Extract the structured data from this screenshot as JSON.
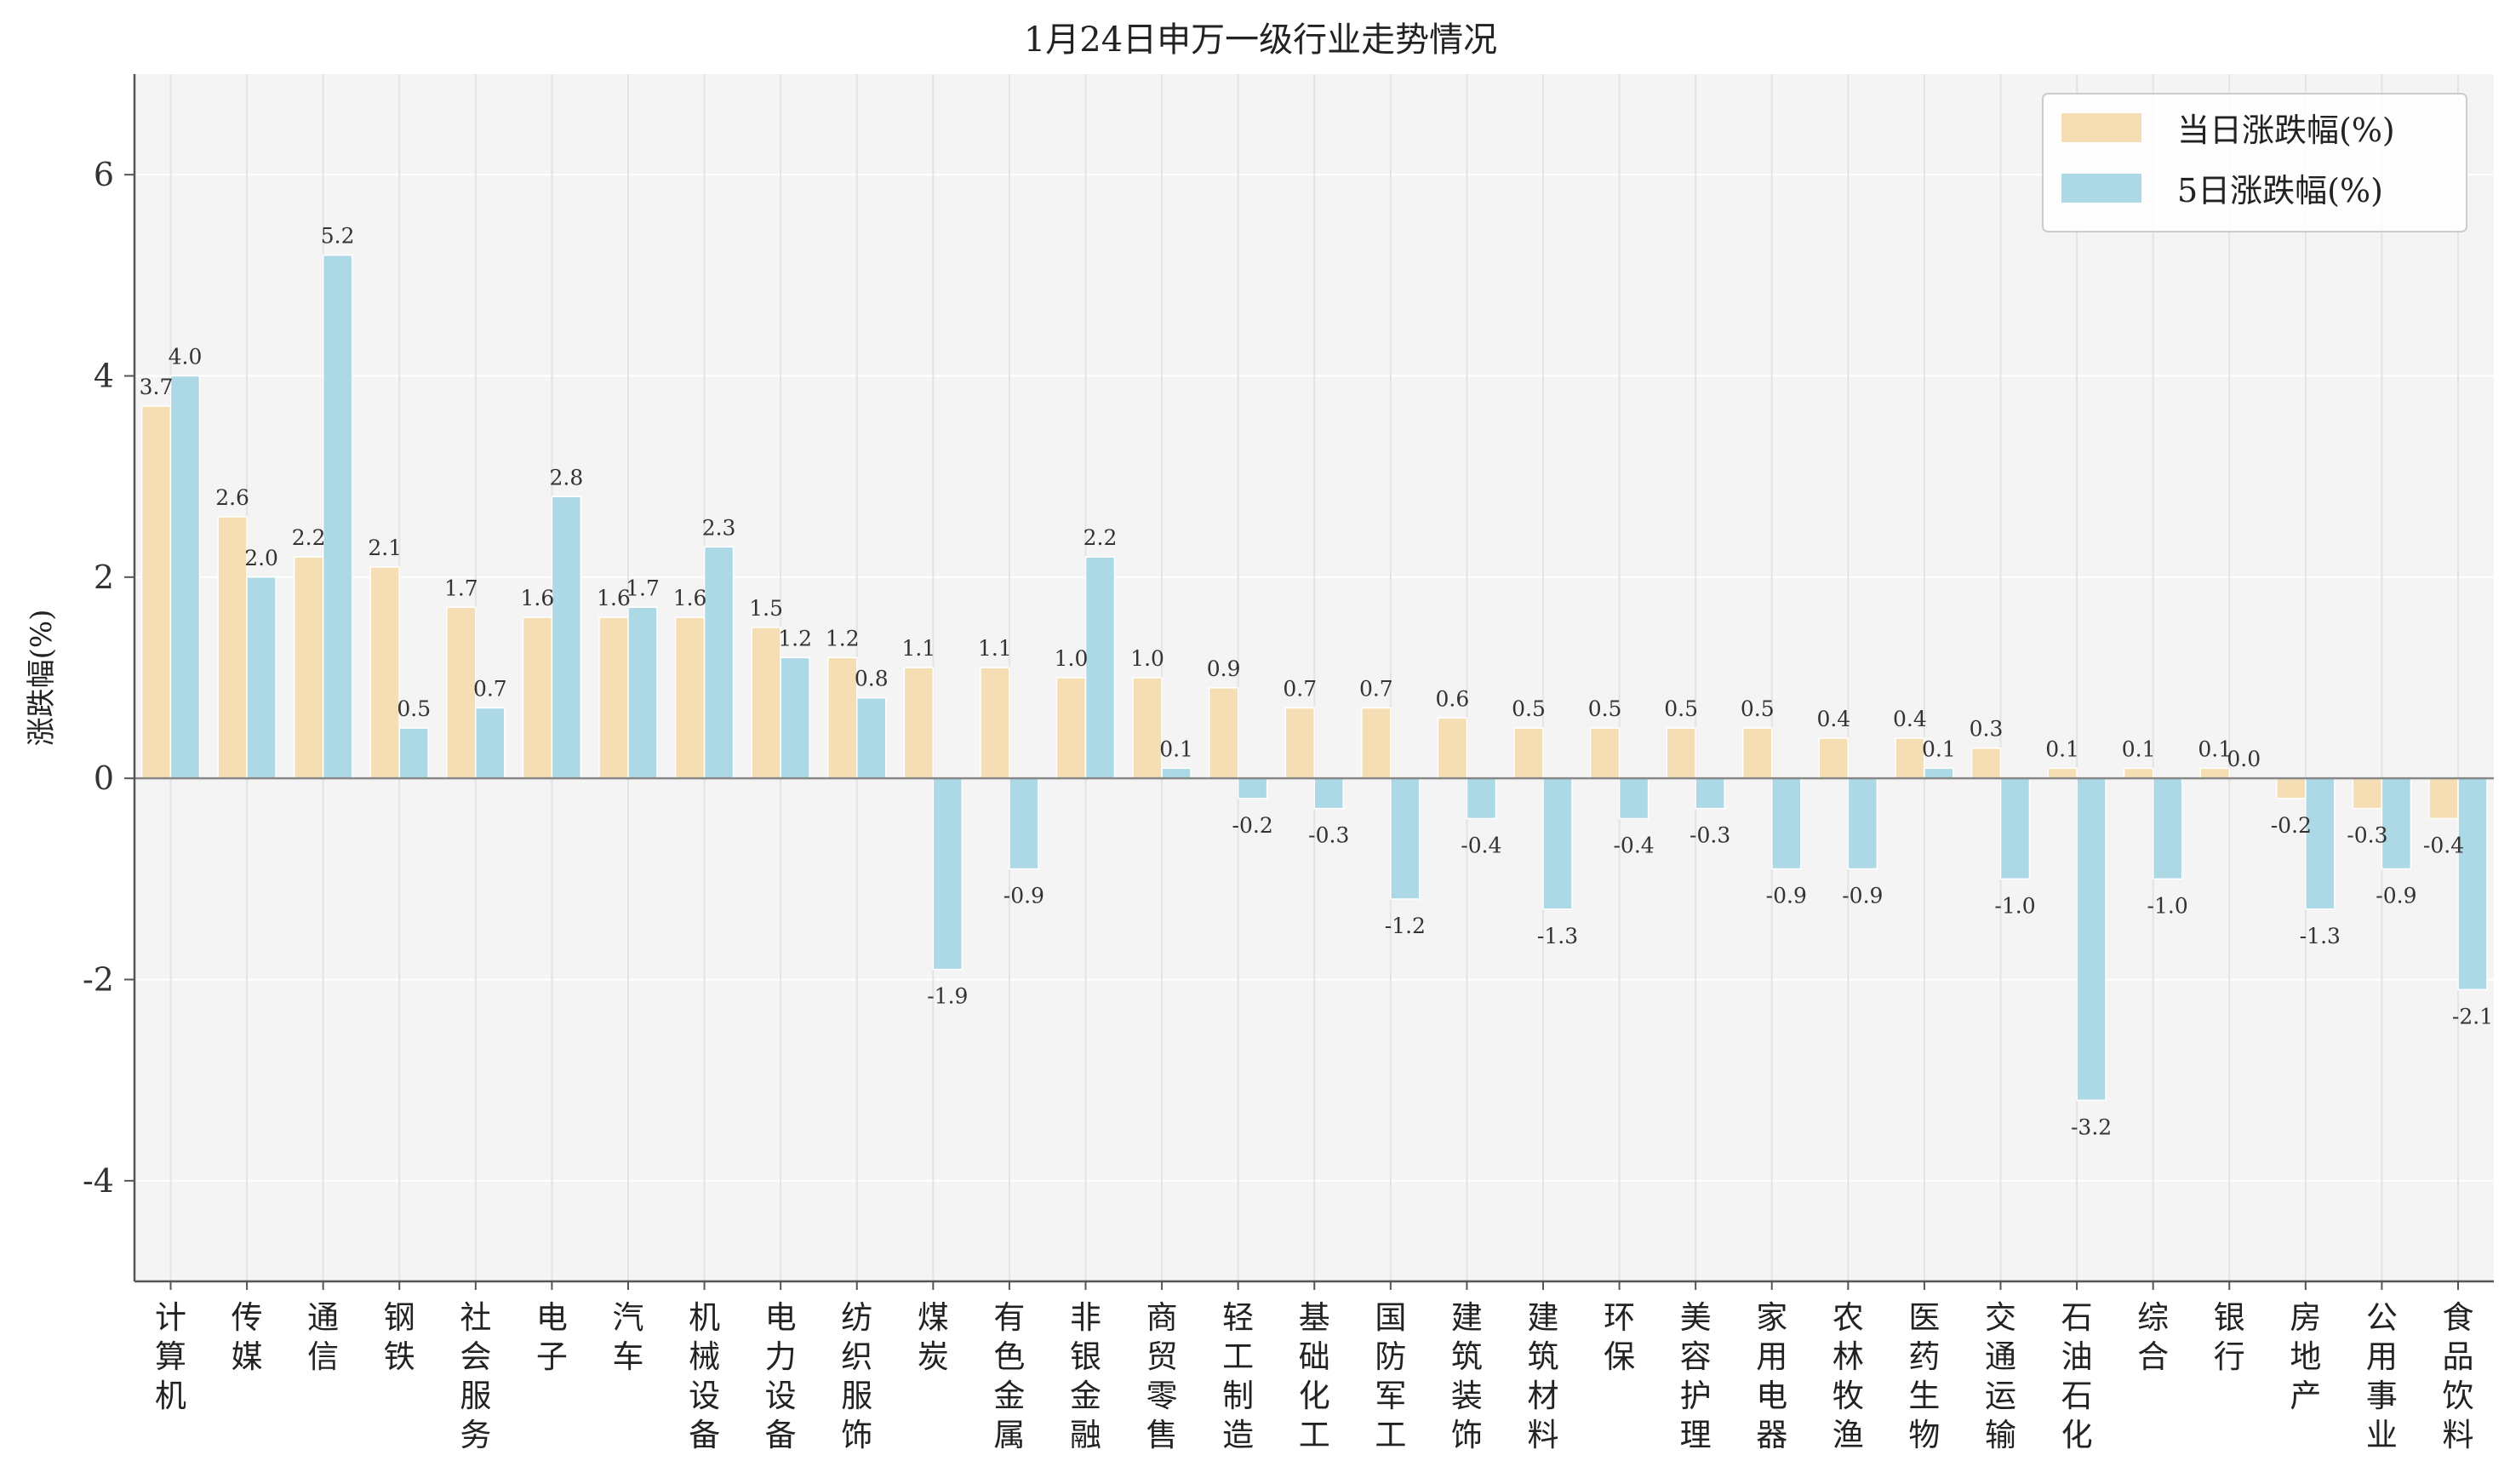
{
  "chart_data": {
    "type": "bar",
    "title": "1月24日申万一级行业走势情况",
    "ylabel": "涨跌幅(%)",
    "xlabel": "",
    "ylim": [
      -5,
      7
    ],
    "yticks": [
      -4,
      -2,
      0,
      2,
      4,
      6
    ],
    "legend_position": "top-right",
    "grid": true,
    "categories": [
      "计算机",
      "传媒",
      "通信",
      "钢铁",
      "社会服务",
      "电子",
      "汽车",
      "机械设备",
      "电力设备",
      "纺织服饰",
      "煤炭",
      "有色金属",
      "非银金融",
      "商贸零售",
      "轻工制造",
      "基础化工",
      "国防军工",
      "建筑装饰",
      "建筑材料",
      "环保",
      "美容护理",
      "家用电器",
      "农林牧渔",
      "医药生物",
      "交通运输",
      "石油石化",
      "综合",
      "银行",
      "房地产",
      "公用事业",
      "食品饮料"
    ],
    "series": [
      {
        "name": "当日涨跌幅(%)",
        "color": "#f5deb3",
        "values": [
          3.7,
          2.6,
          2.2,
          2.1,
          1.7,
          1.6,
          1.6,
          1.6,
          1.5,
          1.2,
          1.1,
          1.1,
          1.0,
          1.0,
          0.9,
          0.7,
          0.7,
          0.6,
          0.5,
          0.5,
          0.5,
          0.5,
          0.4,
          0.4,
          0.3,
          0.1,
          0.1,
          0.1,
          -0.2,
          -0.3,
          -0.4
        ]
      },
      {
        "name": "5日涨跌幅(%)",
        "color": "#add8e6",
        "values": [
          4.0,
          2.0,
          5.2,
          0.5,
          0.7,
          2.8,
          1.7,
          2.3,
          1.2,
          0.8,
          -1.9,
          -0.9,
          2.2,
          0.1,
          -0.2,
          -0.3,
          -1.2,
          -0.4,
          -1.3,
          -0.4,
          -0.3,
          -0.9,
          -0.9,
          0.1,
          -1.0,
          -3.2,
          -1.0,
          0.0,
          -1.3,
          -0.9,
          -2.1
        ]
      }
    ]
  }
}
